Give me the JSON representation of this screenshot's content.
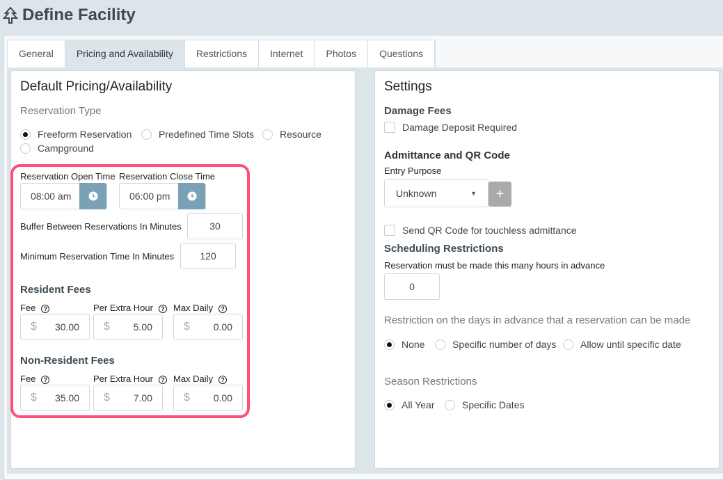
{
  "header": {
    "title": "Define Facility",
    "icon": "tree-icon"
  },
  "tabs": [
    {
      "label": "General"
    },
    {
      "label": "Pricing and Availability",
      "active": true
    },
    {
      "label": "Restrictions"
    },
    {
      "label": "Internet"
    },
    {
      "label": "Photos"
    },
    {
      "label": "Questions"
    }
  ],
  "left": {
    "title": "Default Pricing/Availability",
    "reservation_type_label": "Reservation Type",
    "reservation_types": [
      {
        "label": "Freeform Reservation",
        "selected": true
      },
      {
        "label": "Predefined Time Slots",
        "selected": false
      },
      {
        "label": "Resource",
        "selected": false
      },
      {
        "label": "Campground",
        "selected": false
      }
    ],
    "open_time_label": "Reservation Open Time",
    "open_time": "08:00 am",
    "close_time_label": "Reservation Close Time",
    "close_time": "06:00 pm",
    "buffer_label": "Buffer Between Reservations In Minutes",
    "buffer": "30",
    "min_label": "Minimum Reservation Time In Minutes",
    "min": "120",
    "resident": {
      "title": "Resident Fees",
      "fee_label": "Fee",
      "extra_label": "Per Extra Hour",
      "max_label": "Max Daily",
      "currency": "$",
      "fee": "30.00",
      "extra": "5.00",
      "max": "0.00"
    },
    "nonresident": {
      "title": "Non-Resident Fees",
      "fee_label": "Fee",
      "extra_label": "Per Extra Hour",
      "max_label": "Max Daily",
      "currency": "$",
      "fee": "35.00",
      "extra": "7.00",
      "max": "0.00"
    },
    "highlight_color": "#ff4f79"
  },
  "right": {
    "title": "Settings",
    "damage_title": "Damage Fees",
    "damage_check": "Damage Deposit Required",
    "admit_title": "Admittance and QR Code",
    "entry_label": "Entry Purpose",
    "entry_value": "Unknown",
    "qr_check": "Send QR Code for touchless admittance",
    "sched_title": "Scheduling Restrictions",
    "hours_label": "Reservation must be made this many hours in advance",
    "hours": "0",
    "days_label": "Restriction on the days in advance that a reservation can be made",
    "days_options": [
      {
        "label": "None",
        "selected": true
      },
      {
        "label": "Specific number of days",
        "selected": false
      },
      {
        "label": "Allow until specific date",
        "selected": false
      }
    ],
    "season_label": "Season Restrictions",
    "season_options": [
      {
        "label": "All Year",
        "selected": true
      },
      {
        "label": "Specific Dates",
        "selected": false
      }
    ]
  }
}
